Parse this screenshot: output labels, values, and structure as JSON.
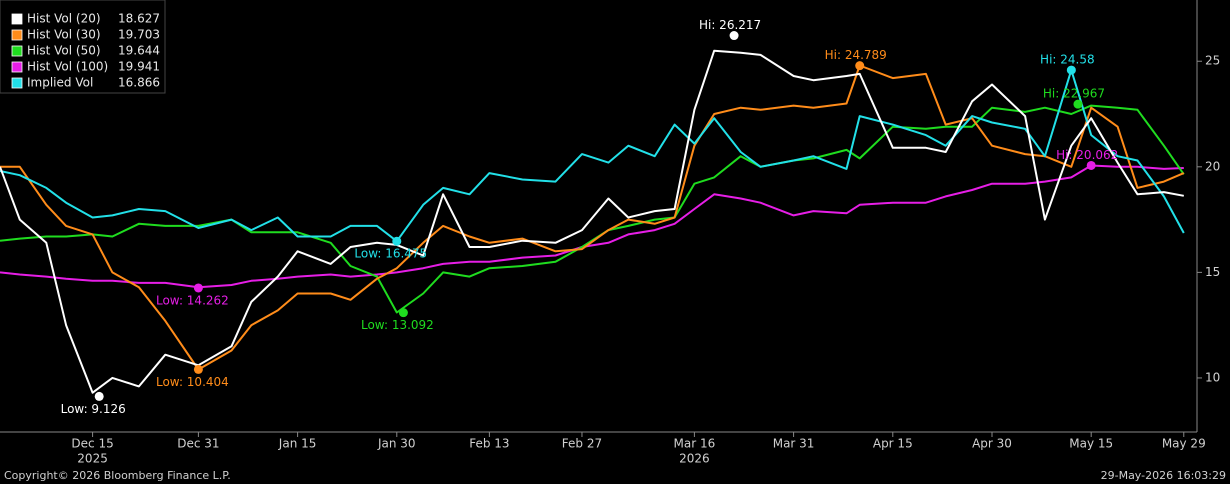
{
  "chart_data": {
    "type": "line",
    "x": [
      "2025-12-01",
      "2025-12-04",
      "2025-12-08",
      "2025-12-11",
      "2025-12-15",
      "2025-12-18",
      "2025-12-22",
      "2025-12-26",
      "2025-12-31",
      "2026-01-05",
      "2026-01-08",
      "2026-01-12",
      "2026-01-15",
      "2026-01-20",
      "2026-01-23",
      "2026-01-27",
      "2026-01-30",
      "2026-02-03",
      "2026-02-06",
      "2026-02-10",
      "2026-02-13",
      "2026-02-18",
      "2026-02-23",
      "2026-02-27",
      "2026-03-03",
      "2026-03-06",
      "2026-03-10",
      "2026-03-13",
      "2026-03-16",
      "2026-03-19",
      "2026-03-23",
      "2026-03-26",
      "2026-03-31",
      "2026-04-03",
      "2026-04-08",
      "2026-04-10",
      "2026-04-15",
      "2026-04-20",
      "2026-04-23",
      "2026-04-27",
      "2026-04-30",
      "2026-05-05",
      "2026-05-08",
      "2026-05-12",
      "2026-05-15",
      "2026-05-19",
      "2026-05-22",
      "2026-05-26",
      "2026-05-29"
    ],
    "series": [
      {
        "name": "Hist Vol (20)",
        "color": "#ffffff",
        "values": [
          20.0,
          17.5,
          16.4,
          12.5,
          9.3,
          10.0,
          9.6,
          11.1,
          10.6,
          11.5,
          13.6,
          14.8,
          16.0,
          15.4,
          16.2,
          16.4,
          16.3,
          15.8,
          18.7,
          16.2,
          16.2,
          16.5,
          16.4,
          17.0,
          18.5,
          17.6,
          17.9,
          18.0,
          22.7,
          25.5,
          25.4,
          25.3,
          24.3,
          24.1,
          24.3,
          24.4,
          20.9,
          20.9,
          20.7,
          23.1,
          23.9,
          22.4,
          17.5,
          21.0,
          22.3,
          20.2,
          18.7,
          18.8,
          18.627
        ],
        "high": {
          "x": "2026-03-22",
          "value": 26.217,
          "label": "Hi: 26.217"
        },
        "low": {
          "x": "2025-12-16",
          "value": 9.126,
          "label": "Low: 9.126"
        }
      },
      {
        "name": "Hist Vol (30)",
        "color": "#ff8c1a",
        "values": [
          20.0,
          20.0,
          18.2,
          17.2,
          16.8,
          15.0,
          14.3,
          12.7,
          10.4,
          11.3,
          12.5,
          13.2,
          14.0,
          14.0,
          13.7,
          14.7,
          15.2,
          16.4,
          17.2,
          16.7,
          16.4,
          16.6,
          16.0,
          16.1,
          17.0,
          17.5,
          17.3,
          17.6,
          21.0,
          22.5,
          22.8,
          22.7,
          22.9,
          22.8,
          23.0,
          24.8,
          24.2,
          24.4,
          22.0,
          22.3,
          21.0,
          20.6,
          20.5,
          20.0,
          22.8,
          21.9,
          19.0,
          19.3,
          19.703
        ],
        "high": {
          "x": "2026-04-10",
          "value": 24.789,
          "label": "Hi: 24.789"
        },
        "low": {
          "x": "2025-12-31",
          "value": 10.404,
          "label": "Low: 10.404"
        }
      },
      {
        "name": "Hist Vol (50)",
        "color": "#1fdc1f",
        "values": [
          16.5,
          16.6,
          16.7,
          16.7,
          16.8,
          16.7,
          17.3,
          17.2,
          17.2,
          17.5,
          16.9,
          16.9,
          16.9,
          16.4,
          15.3,
          14.8,
          13.1,
          14.0,
          15.0,
          14.8,
          15.2,
          15.3,
          15.5,
          16.2,
          17.0,
          17.2,
          17.5,
          17.6,
          19.2,
          19.5,
          20.5,
          20.0,
          20.3,
          20.4,
          20.8,
          20.4,
          21.9,
          21.8,
          21.9,
          21.9,
          22.8,
          22.6,
          22.8,
          22.5,
          22.9,
          22.8,
          22.7,
          21.0,
          19.644
        ],
        "high": {
          "x": "2026-05-13",
          "value": 22.967,
          "label": "Hi: 22.967"
        },
        "low": {
          "x": "2026-01-31",
          "value": 13.092,
          "label": "Low: 13.092"
        }
      },
      {
        "name": "Hist Vol (100)",
        "color": "#e61ee6",
        "values": [
          15.0,
          14.9,
          14.8,
          14.7,
          14.6,
          14.6,
          14.5,
          14.5,
          14.3,
          14.4,
          14.6,
          14.7,
          14.8,
          14.9,
          14.8,
          14.9,
          15.0,
          15.2,
          15.4,
          15.5,
          15.5,
          15.7,
          15.8,
          16.2,
          16.4,
          16.8,
          17.0,
          17.3,
          18.0,
          18.7,
          18.5,
          18.3,
          17.7,
          17.9,
          17.8,
          18.2,
          18.3,
          18.3,
          18.6,
          18.9,
          19.2,
          19.2,
          19.3,
          19.5,
          20.062,
          20.0,
          20.0,
          19.9,
          19.941
        ],
        "high": {
          "x": "2026-05-15",
          "value": 20.062,
          "label": "Hi: 20.062"
        },
        "low": {
          "x": "2025-12-31",
          "value": 14.262,
          "label": "Low: 14.262"
        }
      },
      {
        "name": "Implied Vol",
        "color": "#22e0e8",
        "values": [
          19.8,
          19.6,
          19.0,
          18.3,
          17.6,
          17.7,
          18.0,
          17.9,
          17.1,
          17.5,
          17.0,
          17.6,
          16.7,
          16.7,
          17.2,
          17.2,
          16.475,
          18.2,
          19.0,
          18.7,
          19.7,
          19.4,
          19.3,
          20.6,
          20.2,
          21.0,
          20.5,
          22.0,
          21.1,
          22.3,
          20.7,
          20.0,
          20.3,
          20.5,
          19.9,
          22.4,
          22.0,
          21.5,
          21.0,
          22.4,
          22.1,
          21.8,
          20.5,
          24.58,
          21.5,
          20.5,
          20.3,
          18.6,
          16.866
        ],
        "high": {
          "x": "2026-05-12",
          "value": 24.58,
          "label": "Hi: 24.58"
        },
        "low": {
          "x": "2026-01-30",
          "value": 16.475,
          "label": "Low: 16.475"
        }
      }
    ],
    "xlim": [
      "2025-12-01",
      "2026-05-31"
    ],
    "xticks": [
      {
        "value": "2025-12-15",
        "label": "Dec 15"
      },
      {
        "value": "2025-12-31",
        "label": "Dec 31"
      },
      {
        "value": "2026-01-15",
        "label": "Jan 15"
      },
      {
        "value": "2026-01-30",
        "label": "Jan 30"
      },
      {
        "value": "2026-02-13",
        "label": "Feb 13"
      },
      {
        "value": "2026-02-27",
        "label": "Feb 27"
      },
      {
        "value": "2026-03-16",
        "label": "Mar 16"
      },
      {
        "value": "2026-03-31",
        "label": "Mar 31"
      },
      {
        "value": "2026-04-15",
        "label": "Apr 15"
      },
      {
        "value": "2026-04-30",
        "label": "Apr 30"
      },
      {
        "value": "2026-05-15",
        "label": "May 15"
      },
      {
        "value": "2026-05-29",
        "label": "May 29"
      }
    ],
    "year_labels": [
      {
        "value": "2025-12-15",
        "label": "2025"
      },
      {
        "value": "2026-03-16",
        "label": "2026"
      }
    ],
    "ylim": [
      7.44,
      27.9
    ],
    "yticks": [
      10,
      15,
      20,
      25
    ],
    "copyright": "Copyright© 2026 Bloomberg Finance L.P.",
    "timestamp": "29-May-2026 16:03:29"
  }
}
